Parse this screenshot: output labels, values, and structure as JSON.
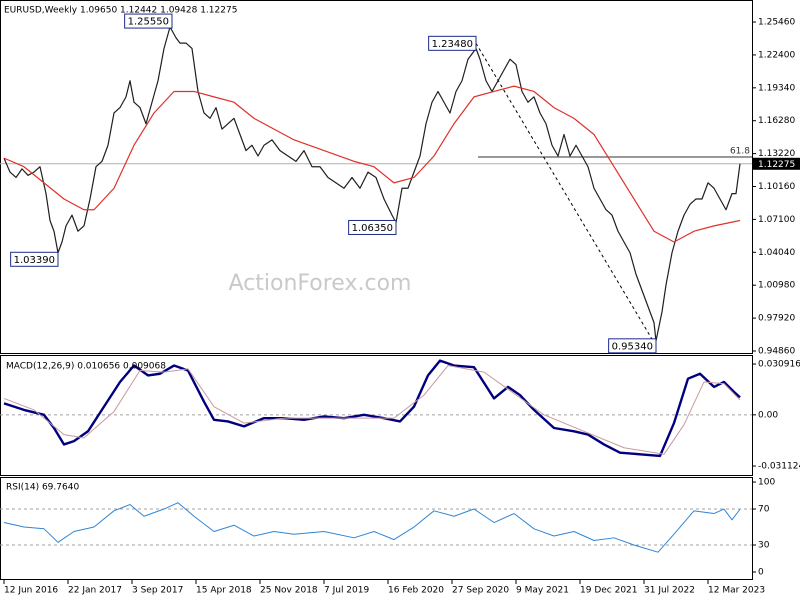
{
  "chart_data": [
    {
      "type": "line",
      "title": "EURUSD,Weekly  1.09650 1.12442 1.09428 1.12275",
      "watermark": "ActionForex.com",
      "xlim": [
        -2,
        374
      ],
      "xticks": [
        {
          "value": 0,
          "label": "12 Jun 2016"
        },
        {
          "value": 32,
          "label": "22 Jan 2017"
        },
        {
          "value": 64,
          "label": "3 Sep 2017"
        },
        {
          "value": 96,
          "label": "15 Apr 2018"
        },
        {
          "value": 128,
          "label": "25 Nov 2018"
        },
        {
          "value": 160,
          "label": "7 Jul 2019"
        },
        {
          "value": 192,
          "label": "16 Feb 2020"
        },
        {
          "value": 224,
          "label": "27 Sep 2020"
        },
        {
          "value": 256,
          "label": "9 May 2021"
        },
        {
          "value": 288,
          "label": "19 Dec 2021"
        },
        {
          "value": 320,
          "label": "31 Jul 2022"
        },
        {
          "value": 352,
          "label": "12 Mar 2023"
        }
      ],
      "ylim": [
        0.9458,
        1.2751
      ],
      "yticks": [
        {
          "value": 1.2546,
          "label": "1.25460"
        },
        {
          "value": 1.224,
          "label": "1.22400"
        },
        {
          "value": 1.1934,
          "label": "1.19340"
        },
        {
          "value": 1.1628,
          "label": "1.16280"
        },
        {
          "value": 1.1322,
          "label": "1.13220"
        },
        {
          "value": 1.1016,
          "label": "1.10160"
        },
        {
          "value": 1.071,
          "label": "1.07100"
        },
        {
          "value": 1.0404,
          "label": "1.04040"
        },
        {
          "value": 1.0098,
          "label": "1.00980"
        },
        {
          "value": 0.9792,
          "label": "0.97920"
        },
        {
          "value": 0.9486,
          "label": "0.94860"
        }
      ],
      "series": [
        {
          "color": "#1f1f1f",
          "width": 1.2,
          "x": [
            0,
            3,
            6,
            9,
            12,
            15,
            18,
            21,
            23,
            25,
            27,
            29,
            31,
            34,
            37,
            40,
            43,
            46,
            49,
            52,
            55,
            58,
            61,
            63,
            65,
            68,
            71,
            74,
            77,
            80,
            83,
            86,
            88,
            91,
            94,
            97,
            100,
            103,
            106,
            109,
            112,
            115,
            118,
            121,
            124,
            127,
            130,
            134,
            138,
            142,
            146,
            150,
            154,
            158,
            162,
            166,
            170,
            174,
            178,
            182,
            186,
            190,
            194,
            196,
            199,
            202,
            205,
            208,
            211,
            214,
            217,
            220,
            223,
            226,
            229,
            232,
            236,
            238,
            241,
            244,
            247,
            250,
            253,
            256,
            259,
            262,
            265,
            268,
            271,
            274,
            277,
            280,
            283,
            286,
            289,
            292,
            295,
            298,
            301,
            304,
            307,
            310,
            313,
            316,
            319,
            322,
            325,
            326,
            329,
            331,
            334,
            337,
            340,
            343,
            346,
            349,
            352,
            355,
            358,
            361,
            364,
            366,
            368
          ],
          "values": [
            1.128,
            1.115,
            1.11,
            1.118,
            1.112,
            1.115,
            1.12,
            1.095,
            1.07,
            1.06,
            1.04,
            1.05,
            1.065,
            1.075,
            1.06,
            1.065,
            1.09,
            1.12,
            1.125,
            1.14,
            1.17,
            1.175,
            1.185,
            1.2,
            1.18,
            1.175,
            1.16,
            1.18,
            1.2,
            1.23,
            1.25,
            1.24,
            1.235,
            1.235,
            1.23,
            1.19,
            1.17,
            1.165,
            1.175,
            1.155,
            1.16,
            1.165,
            1.15,
            1.135,
            1.14,
            1.13,
            1.14,
            1.145,
            1.135,
            1.13,
            1.125,
            1.135,
            1.12,
            1.12,
            1.11,
            1.105,
            1.1,
            1.11,
            1.1,
            1.115,
            1.11,
            1.09,
            1.075,
            1.068,
            1.1,
            1.1,
            1.115,
            1.13,
            1.16,
            1.18,
            1.19,
            1.18,
            1.17,
            1.19,
            1.2,
            1.22,
            1.23,
            1.22,
            1.2,
            1.19,
            1.2,
            1.21,
            1.22,
            1.215,
            1.19,
            1.18,
            1.185,
            1.17,
            1.16,
            1.14,
            1.13,
            1.15,
            1.13,
            1.14,
            1.13,
            1.12,
            1.1,
            1.09,
            1.08,
            1.075,
            1.06,
            1.05,
            1.04,
            1.02,
            1.005,
            0.99,
            0.975,
            0.958,
            0.985,
            1.01,
            1.04,
            1.06,
            1.075,
            1.085,
            1.09,
            1.09,
            1.105,
            1.1,
            1.09,
            1.08,
            1.095,
            1.095,
            1.12275
          ]
        },
        {
          "color": "#e0302b",
          "width": 1.2,
          "x": [
            0,
            10,
            20,
            30,
            40,
            45,
            55,
            65,
            75,
            85,
            95,
            105,
            115,
            125,
            135,
            145,
            160,
            175,
            185,
            195,
            205,
            215,
            225,
            235,
            245,
            255,
            265,
            275,
            285,
            295,
            305,
            315,
            325,
            335,
            345,
            355,
            368
          ],
          "values": [
            1.128,
            1.12,
            1.105,
            1.09,
            1.08,
            1.08,
            1.1,
            1.14,
            1.17,
            1.19,
            1.19,
            1.185,
            1.18,
            1.165,
            1.155,
            1.145,
            1.135,
            1.125,
            1.12,
            1.105,
            1.11,
            1.13,
            1.16,
            1.185,
            1.19,
            1.195,
            1.19,
            1.175,
            1.165,
            1.15,
            1.12,
            1.09,
            1.06,
            1.05,
            1.06,
            1.065,
            1.07
          ]
        }
      ],
      "last_price": 1.12275,
      "retracement": {
        "label": "61.8",
        "value": 1.129,
        "x_start": 237
      },
      "annotations": [
        {
          "text": "1.25550",
          "x": 84,
          "y": 1.2555
        },
        {
          "text": "1.03390",
          "x": 27,
          "y": 1.0339
        },
        {
          "text": "1.06350",
          "x": 196,
          "y": 1.0635
        },
        {
          "text": "1.23480",
          "x": 236,
          "y": 1.2348
        },
        {
          "text": "0.95340",
          "x": 326,
          "y": 0.9534
        }
      ]
    },
    {
      "type": "line",
      "title": "MACD(12,26,9) 0.010656 0.009068",
      "xlim": [
        -2,
        374
      ],
      "ylim": [
        -0.0372,
        0.0358
      ],
      "yticks": [
        0.030916,
        {
          "value": 0,
          "label": "0.00"
        },
        -0.031124
      ],
      "levels": [
        0
      ],
      "series": [
        {
          "color": "#00007f",
          "width": 2.4,
          "x": [
            0,
            10,
            20,
            25,
            30,
            35,
            42,
            50,
            58,
            65,
            72,
            78,
            85,
            92,
            100,
            105,
            112,
            120,
            130,
            140,
            150,
            160,
            170,
            180,
            190,
            198,
            205,
            212,
            218,
            225,
            235,
            245,
            252,
            258,
            265,
            275,
            285,
            292,
            300,
            308,
            318,
            328,
            335,
            342,
            348,
            355,
            360,
            365,
            368
          ],
          "values": [
            0.007,
            0.003,
            0,
            -0.008,
            -0.018,
            -0.016,
            -0.01,
            0.005,
            0.02,
            0.03,
            0.024,
            0.025,
            0.03,
            0.027,
            0.008,
            -0.003,
            -0.004,
            -0.007,
            -0.002,
            -0.002,
            -0.003,
            -0.001,
            -0.002,
            0,
            -0.002,
            -0.004,
            0.005,
            0.024,
            0.033,
            0.03,
            0.029,
            0.01,
            0.017,
            0.012,
            0.003,
            -0.008,
            -0.01,
            -0.012,
            -0.018,
            -0.023,
            -0.024,
            -0.025,
            -0.005,
            0.022,
            0.025,
            0.017,
            0.02,
            0.014,
            0.010656
          ]
        },
        {
          "color": "#c89a9a",
          "width": 1,
          "x": [
            0,
            15,
            30,
            40,
            55,
            68,
            80,
            92,
            105,
            120,
            140,
            170,
            195,
            210,
            222,
            240,
            255,
            270,
            290,
            310,
            330,
            340,
            350,
            360,
            368
          ],
          "values": [
            0.01,
            0.003,
            -0.012,
            -0.014,
            0.002,
            0.027,
            0.026,
            0.028,
            0.005,
            -0.005,
            -0.002,
            -0.002,
            -0.002,
            0.012,
            0.03,
            0.026,
            0.013,
            0,
            -0.01,
            -0.02,
            -0.024,
            -0.006,
            0.02,
            0.019,
            0.009068
          ]
        }
      ]
    },
    {
      "type": "line",
      "title": "RSI(14) 69.7640",
      "xlim": [
        -2,
        374
      ],
      "ylim": [
        -8.9,
        105.6
      ],
      "yticks": [
        100,
        70,
        30,
        0
      ],
      "levels": [
        70,
        30
      ],
      "series": [
        {
          "color": "#2f86d6",
          "width": 1,
          "x": [
            0,
            10,
            20,
            27,
            35,
            45,
            55,
            63,
            70,
            80,
            87,
            95,
            105,
            115,
            125,
            135,
            145,
            160,
            175,
            185,
            195,
            205,
            215,
            225,
            235,
            245,
            255,
            265,
            275,
            285,
            295,
            305,
            315,
            327,
            335,
            345,
            355,
            360,
            364,
            368
          ],
          "values": [
            55,
            50,
            48,
            33,
            45,
            50,
            68,
            75,
            62,
            70,
            77,
            62,
            45,
            52,
            40,
            45,
            42,
            45,
            38,
            45,
            36,
            50,
            68,
            62,
            70,
            55,
            65,
            48,
            40,
            45,
            35,
            38,
            30,
            22,
            42,
            68,
            65,
            70,
            58,
            69.764
          ]
        }
      ]
    }
  ]
}
